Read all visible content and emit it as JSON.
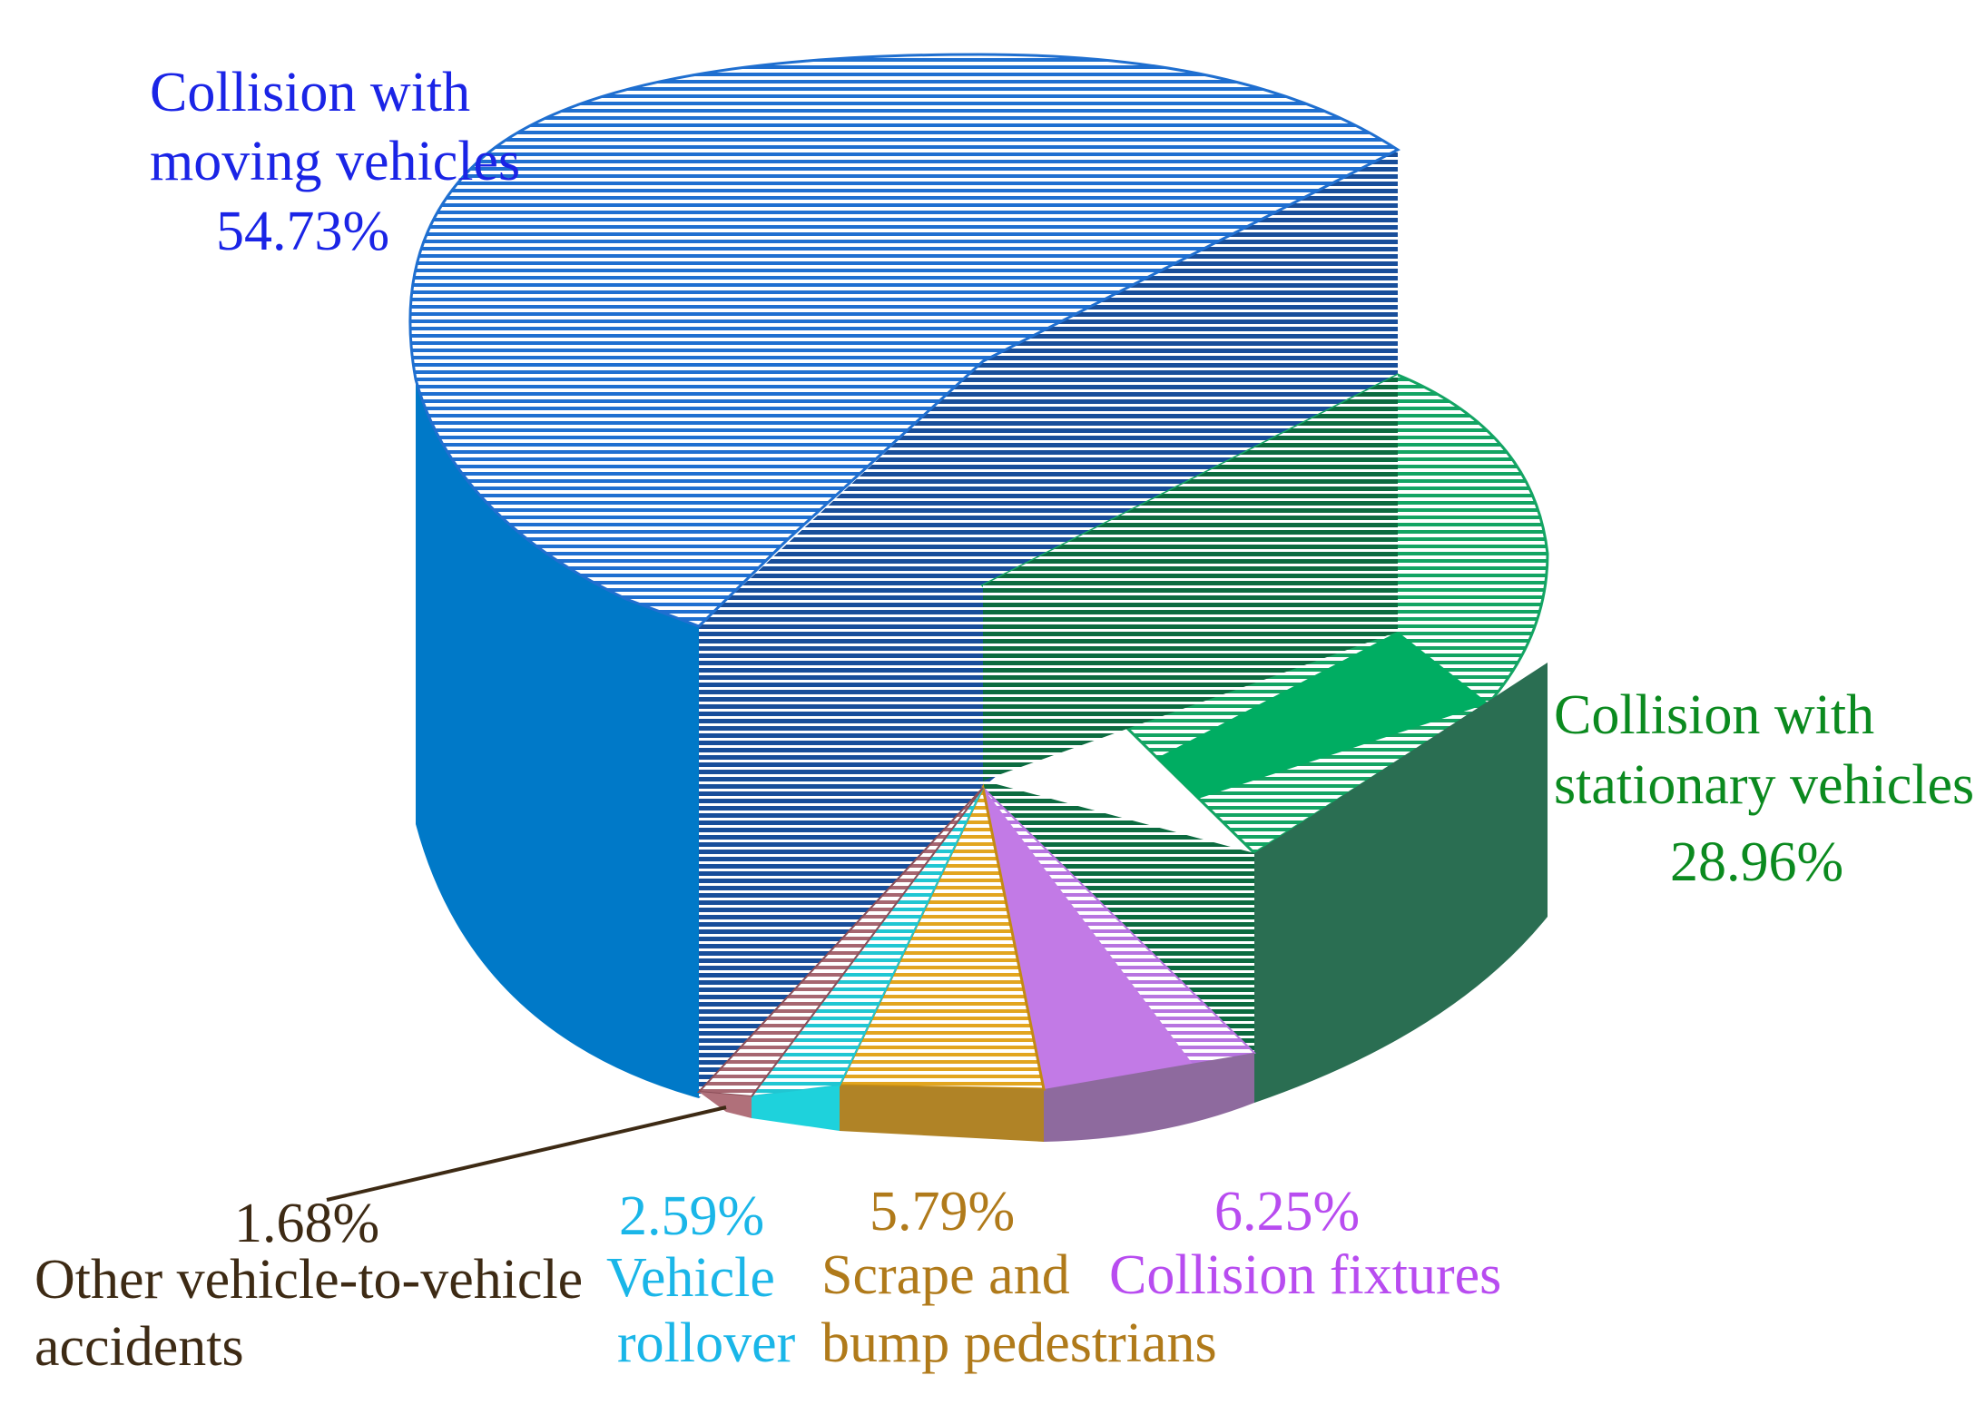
{
  "chart_data": {
    "type": "pie",
    "title": "",
    "style": "3d-exploded-pie",
    "slices": [
      {
        "name": "Collision with moving vehicles",
        "name_lines": [
          "Collision with",
          "moving vehicles"
        ],
        "value": 54.73,
        "value_label": "54.73%",
        "color": "#0078c8",
        "label_color": "#1a24e6"
      },
      {
        "name": "Collision with stationary vehicles",
        "name_lines": [
          "Collision with",
          "stationary vehicles"
        ],
        "value": 28.96,
        "value_label": "28.96%",
        "color": "#00ad62",
        "label_color": "#0b8a1f"
      },
      {
        "name": "Collision fixtures",
        "name_lines": [
          "Collision fixtures"
        ],
        "value": 6.25,
        "value_label": "6.25%",
        "color": "#c27ae6",
        "label_color": "#b84cf0"
      },
      {
        "name": "Scrape and bump pedestrians",
        "name_lines": [
          "Scrape and",
          "bump pedestrians"
        ],
        "value": 5.79,
        "value_label": "5.79%",
        "color": "#f2b01a",
        "label_color": "#b07a1a"
      },
      {
        "name": "Vehicle rollover",
        "name_lines": [
          "Vehicle",
          "rollover"
        ],
        "value": 2.59,
        "value_label": "2.59%",
        "color": "#1ed2dc",
        "label_color": "#1ab6e8"
      },
      {
        "name": "Other vehicle-to-vehicle accidents",
        "name_lines": [
          "Other vehicle-to-vehicle",
          "accidents"
        ],
        "value": 1.68,
        "value_label": "1.68%",
        "color": "#b0707a",
        "label_color": "#3d2a14"
      }
    ]
  }
}
